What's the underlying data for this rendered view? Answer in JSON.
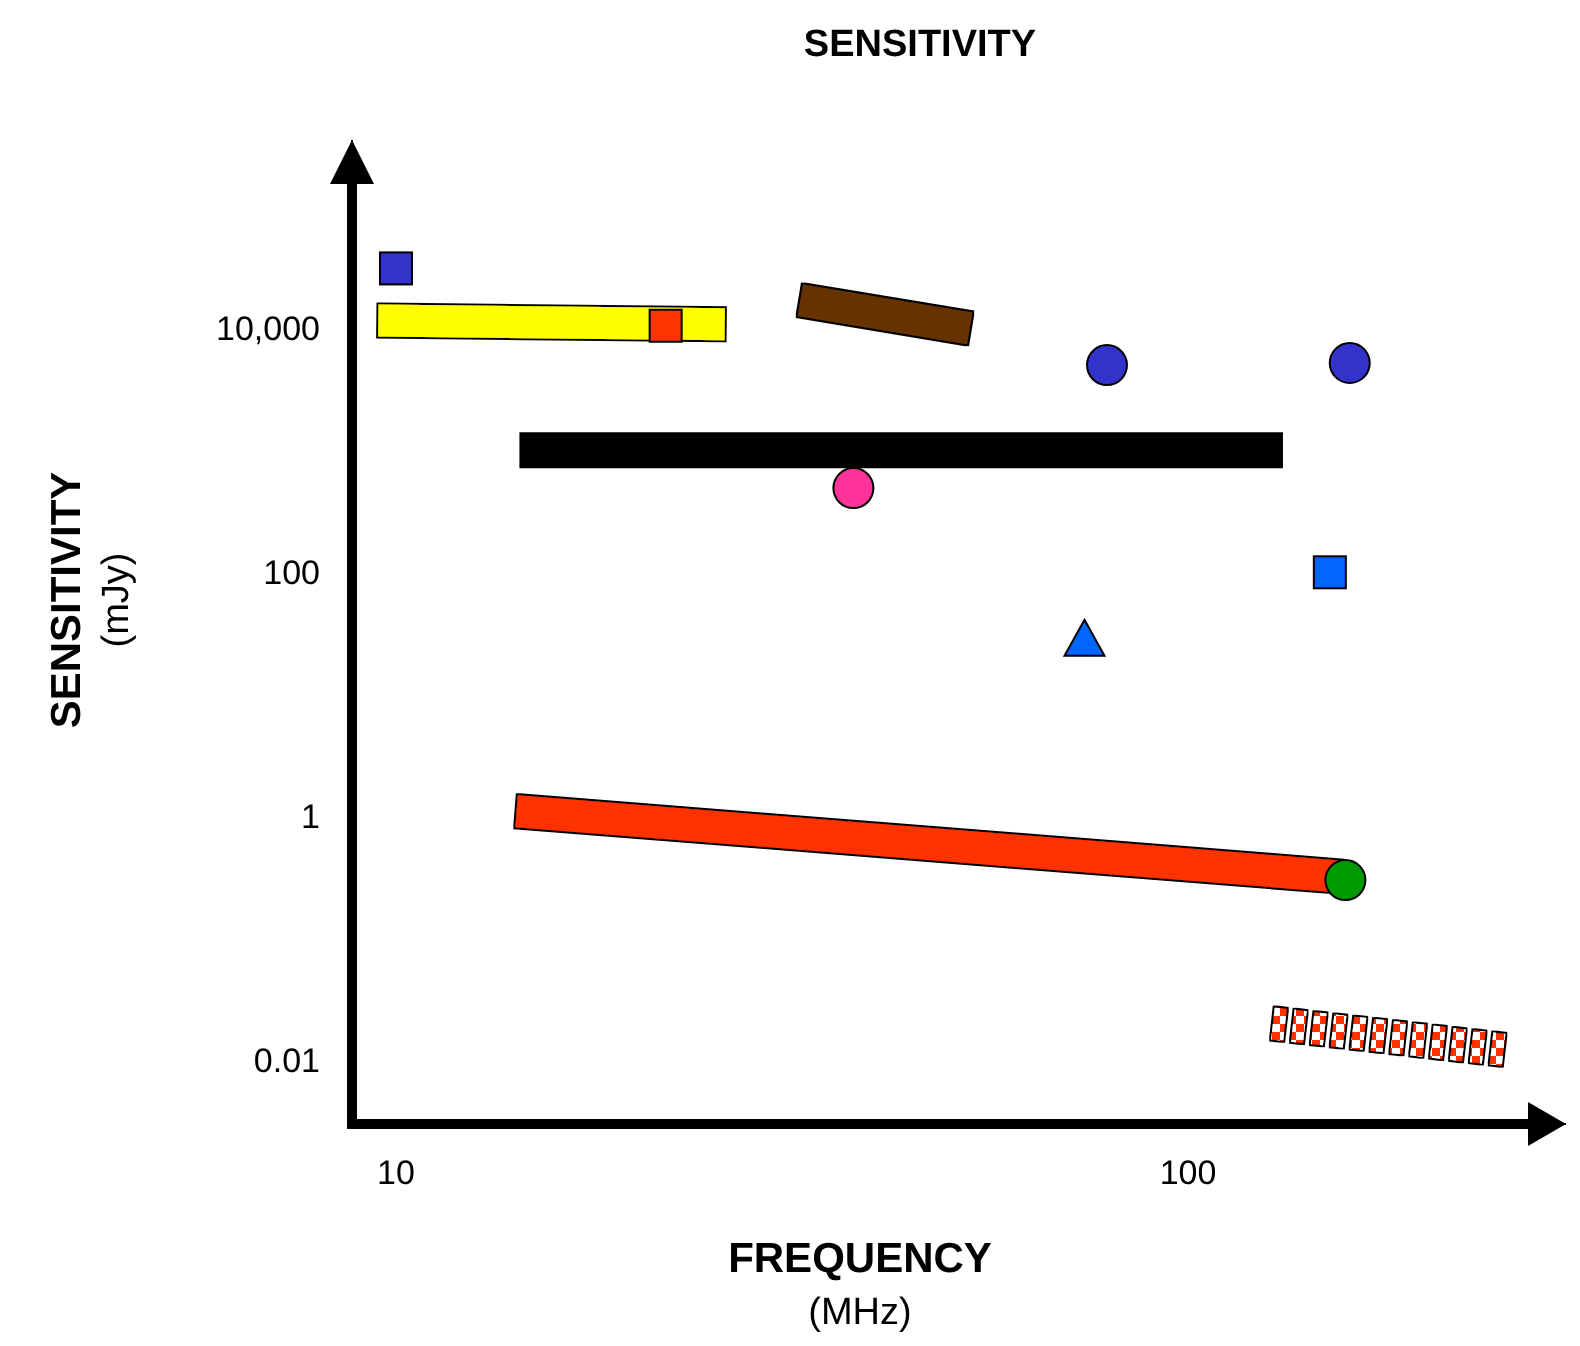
{
  "chart_data": {
    "type": "scatter",
    "title": "SENSITIVITY",
    "xlabel": "FREQUENCY\n(MHz)",
    "ylabel": "SENSITIVITY\n(mJy)",
    "log": "xy",
    "grid": false,
    "xlim": [
      8.8,
      300
    ],
    "ylim": [
      0.003,
      350000
    ],
    "xticks": [
      10,
      100
    ],
    "yticks": [
      {
        "value": 10000,
        "label": "10,000"
      },
      100,
      1,
      0.01
    ],
    "series": [
      {
        "type": "line",
        "color": "#ffff00",
        "x": [
          9.5,
          26
        ],
        "values": [
          11600,
          10800
        ],
        "marker": "none",
        "line_style": "solid"
      },
      {
        "type": "line",
        "color": "#663300",
        "x": [
          32.4,
          53
        ],
        "values": [
          17000,
          10000
        ],
        "marker": "none",
        "line_style": "solid"
      },
      {
        "type": "line",
        "color": "#000000",
        "x": [
          14.4,
          131
        ],
        "values": [
          1000,
          1000
        ],
        "marker": "none",
        "line_style": "solid"
      },
      {
        "type": "line",
        "color": "#ff3300",
        "x": [
          14.2,
          156
        ],
        "values": [
          1.1,
          0.32
        ],
        "marker": "none",
        "line_style": "solid"
      },
      {
        "type": "line",
        "color": "#ff3300",
        "x": [
          128,
          255
        ],
        "values": [
          0.02,
          0.012
        ],
        "marker": "none",
        "line_style": "dotted"
      },
      {
        "color": "#3333cc",
        "x": [
          10
        ],
        "values": [
          31000
        ],
        "marker": "square"
      },
      {
        "color": "#ff3300",
        "x": [
          21.9
        ],
        "values": [
          10500
        ],
        "marker": "square"
      },
      {
        "color": "#3333cc",
        "x": [
          79,
          160
        ],
        "values": [
          5000,
          5200
        ],
        "marker": "circle"
      },
      {
        "color": "#ff3399",
        "x": [
          37.8
        ],
        "values": [
          490
        ],
        "marker": "circle"
      },
      {
        "color": "#0066ff",
        "x": [
          151
        ],
        "values": [
          100
        ],
        "marker": "square"
      },
      {
        "color": "#0066ff",
        "x": [
          74
        ],
        "values": [
          28
        ],
        "marker": "triangle"
      },
      {
        "color": "#009900",
        "x": [
          158
        ],
        "values": [
          0.3
        ],
        "marker": "circle"
      }
    ]
  }
}
